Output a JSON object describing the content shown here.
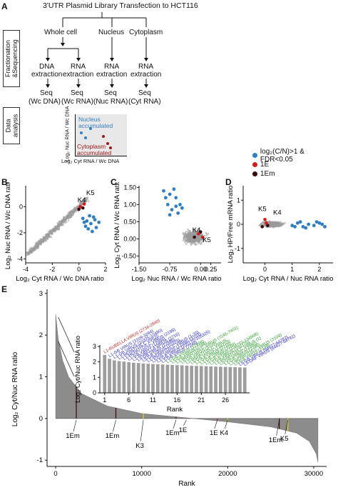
{
  "panel_a": {
    "letter": "A",
    "title": "3'UTR Plasmid Library Transfection to HCT116",
    "section1_label": "Fractionation &Sequencing",
    "section2_label": "Data analysis",
    "fractions": [
      "Whole cell",
      "Nucleus",
      "Cytoplasm"
    ],
    "columns": [
      {
        "extraction_1": "DNA",
        "extraction_2": "extraction",
        "seq": "Seq",
        "sample": "(Wc DNA)"
      },
      {
        "extraction_1": "RNA",
        "extraction_2": "extraction",
        "seq": "Seq",
        "sample": "(Wc RNA)"
      },
      {
        "extraction_1": "RNA",
        "extraction_2": "extraction",
        "seq": "Seq",
        "sample": "(Nuc RNA)"
      },
      {
        "extraction_1": "RNA",
        "extraction_2": "extraction",
        "seq": "Seq",
        "sample": "(Cyt RNA)"
      }
    ],
    "schematic": {
      "ylabel": "Log₂ Nuc RNA / Wc DNA",
      "xlabel": "Log₂ Cyt RNA / Wc DNA",
      "nucleus_label_1": "Nucleus",
      "nucleus_label_2": "accumulated",
      "cytoplasm_label_1": "Cytoplasm",
      "cytoplasm_label_2": "accumulated"
    }
  },
  "legend": {
    "items": [
      {
        "label": "log₂(C/N)>1 & FDR<0.05",
        "color": "#2f7fc6"
      },
      {
        "label": "1E",
        "color": "#d01c1c"
      },
      {
        "label": "1Em",
        "color": "#3a0a0a"
      }
    ]
  },
  "colors": {
    "gray": "#9a9a9a",
    "blue": "#2f7fc6",
    "red": "#d01c1c",
    "dark": "#3a0a0a",
    "yellow": "#e8d21a"
  },
  "chart_data": [
    {
      "panel": "B",
      "type": "scatter",
      "xlabel": "Log₂ Cyt RNA / Wc DNA ratio",
      "ylabel": "Log₂ Nuc RNA / Wc DNA ratio",
      "xlim": [
        -4,
        2
      ],
      "ylim": [
        -4.3,
        1.6
      ],
      "xticks": [
        -4,
        -2,
        0,
        2
      ],
      "yticks": [
        -4,
        -2,
        0
      ],
      "annotations": [
        {
          "text": "K5",
          "x": 0.55,
          "y": 0.9
        },
        {
          "text": "K4",
          "x": -0.1,
          "y": 0.35
        }
      ],
      "highlight_blue": [
        [
          0.3,
          -0.9
        ],
        [
          0.6,
          -1.1
        ],
        [
          0.9,
          -1.3
        ],
        [
          1.2,
          -1.0
        ],
        [
          0.5,
          -1.5
        ],
        [
          0.8,
          -0.7
        ],
        [
          1.3,
          -1.6
        ],
        [
          1.0,
          -1.9
        ],
        [
          0.4,
          -1.2
        ],
        [
          1.5,
          -1.2
        ],
        [
          0.7,
          -1.7
        ],
        [
          1.1,
          -0.8
        ]
      ],
      "highlight_red": [
        [
          0.1,
          0.0
        ],
        [
          0.4,
          0.2
        ]
      ],
      "highlight_dark": [
        [
          0.0,
          -0.2
        ],
        [
          0.3,
          -0.1
        ]
      ]
    },
    {
      "panel": "C",
      "type": "scatter",
      "xlabel": "Log₂ Nuc RNA / Wc RNA ratio",
      "ylabel": "Log₂ Cyt RNA / Wc RNA ratio",
      "xlim": [
        -1.5,
        0.5
      ],
      "ylim": [
        -0.7,
        1.55
      ],
      "xticks": [
        -1.5,
        -0.75,
        0,
        0.25
      ],
      "xticklabels": [
        "-1.50",
        "-0.75",
        "0.00",
        "0.25"
      ],
      "yticks": [
        -0.5,
        0,
        0.5,
        1.0,
        1.5
      ],
      "yticklabels": [
        "-0.50",
        "0.00",
        "0.50",
        "1.00",
        "1.50"
      ],
      "annotations": [
        {
          "text": "K4",
          "x": -0.2,
          "y": 0.2
        },
        {
          "text": "K5",
          "x": 0.05,
          "y": -0.1
        }
      ],
      "highlight_blue": [
        [
          -0.9,
          1.4
        ],
        [
          -0.75,
          1.3
        ],
        [
          -0.6,
          1.2
        ],
        [
          -0.8,
          1.0
        ],
        [
          -0.5,
          1.0
        ],
        [
          -0.7,
          0.85
        ],
        [
          -0.55,
          0.75
        ],
        [
          -0.85,
          1.2
        ],
        [
          -0.65,
          1.45
        ],
        [
          -0.45,
          0.9
        ],
        [
          -0.75,
          0.7
        ],
        [
          -0.6,
          0.95
        ]
      ],
      "highlight_red": [
        [
          -0.05,
          0.15
        ],
        [
          0.05,
          0.05
        ]
      ],
      "highlight_dark": [
        [
          -0.15,
          0.05
        ],
        [
          0.0,
          0.2
        ]
      ]
    },
    {
      "panel": "D",
      "type": "scatter",
      "xlabel": "Log₂ Cyt RNA / Nuc RNA ratio",
      "ylabel": "Log₂ HP/Free mRNA ratio",
      "xlim": [
        -0.8,
        2.5
      ],
      "ylim": [
        -1.6,
        1.6
      ],
      "xticks": [
        0,
        1,
        2
      ],
      "yticks": [
        -1,
        0,
        1
      ],
      "annotations": [
        {
          "text": "K5",
          "x": -0.25,
          "y": 0.55
        },
        {
          "text": "K4",
          "x": 0.3,
          "y": 0.4
        }
      ],
      "highlight_blue": [
        [
          1.0,
          -0.05
        ],
        [
          1.2,
          0.05
        ],
        [
          1.4,
          -0.1
        ],
        [
          1.6,
          0.0
        ],
        [
          1.8,
          -0.05
        ],
        [
          2.0,
          0.05
        ],
        [
          2.2,
          -0.1
        ],
        [
          1.3,
          0.1
        ],
        [
          1.5,
          -0.15
        ],
        [
          1.9,
          0.1
        ],
        [
          2.1,
          0.0
        ],
        [
          1.1,
          -0.1
        ]
      ],
      "highlight_red": [
        [
          0.0,
          0.2
        ],
        [
          0.05,
          0.05
        ]
      ],
      "highlight_dark": [
        [
          -0.1,
          -0.1
        ],
        [
          0.1,
          -0.05
        ]
      ]
    },
    {
      "panel": "E",
      "type": "area",
      "xlabel": "Rank",
      "ylabel": "Log₂ Cyt/Nuc RNA ratio",
      "xlim": [
        -1000,
        31500
      ],
      "ylim": [
        -1.15,
        3.1
      ],
      "xticks": [
        0,
        10000,
        20000,
        30000
      ],
      "yticks": [
        -1,
        0,
        1,
        2,
        3
      ],
      "curve": [
        [
          0,
          2.5
        ],
        [
          300,
          1.9
        ],
        [
          800,
          1.4
        ],
        [
          1500,
          1.0
        ],
        [
          3000,
          0.6
        ],
        [
          6000,
          0.3
        ],
        [
          10000,
          0.12
        ],
        [
          15000,
          0.02
        ],
        [
          20000,
          -0.08
        ],
        [
          25000,
          -0.2
        ],
        [
          28000,
          -0.35
        ],
        [
          29500,
          -0.55
        ],
        [
          30300,
          -0.85
        ],
        [
          30500,
          -1.05
        ]
      ],
      "markers": [
        {
          "text": "1Em",
          "x": 2400,
          "color": "#3a0a0a"
        },
        {
          "text": "1Em",
          "x": 7000,
          "color": "#3a0a0a"
        },
        {
          "text": "K3",
          "x": 10200,
          "color": "#e8d21a"
        },
        {
          "text": "1Em",
          "x": 14000,
          "color": "#3a0a0a"
        },
        {
          "text": "1E",
          "x": 15200,
          "color": "#d01c1c"
        },
        {
          "text": "1E",
          "x": 18800,
          "color": "#d01c1c"
        },
        {
          "text": "K4",
          "x": 20000,
          "color": "#e8d21a"
        },
        {
          "text": "1Em",
          "x": 26000,
          "color": "#3a0a0a"
        },
        {
          "text": "K5",
          "x": 27000,
          "color": "#e8d21a"
        }
      ]
    },
    {
      "panel": "E-inset",
      "type": "bar",
      "xlabel": "Rank",
      "ylabel": "Log₂ Cyt/Nuc RNA ratio",
      "xlim": [
        0,
        31
      ],
      "ylim": [
        0,
        3
      ],
      "xticks": [
        1,
        6,
        11,
        16,
        21,
        26
      ],
      "yticks": [
        0,
        1,
        2,
        3
      ],
      "values": [
        2.45,
        2.2,
        2.1,
        2.05,
        2.02,
        1.98,
        1.95,
        1.93,
        1.9,
        1.88,
        1.86,
        1.85,
        1.83,
        1.82,
        1.8,
        1.79,
        1.78,
        1.76,
        1.75,
        1.74,
        1.73,
        1.72,
        1.71,
        1.7,
        1.69,
        1.68,
        1.67,
        1.66,
        1.65,
        1.64
      ],
      "labels": [
        {
          "text": "L1-RUBELLA VIRUS (2716-2840)",
          "color": "#d01c1c"
        },
        {
          "text": "L1-GB VIRUS (3109-3264)",
          "color": "#2b2bd6"
        },
        {
          "text": "L1-GB VIRUS (10325-10480)",
          "color": "#2b2bd6"
        },
        {
          "text": "L1-HEPATITIS C VIRUS",
          "color": "#2b2bd6"
        },
        {
          "text": "L1-HEPATITIS C VIRUS (2198)",
          "color": "#2b2bd6"
        },
        {
          "text": "L1-GB VIRUS (12996)",
          "color": "#2b2bd6"
        },
        {
          "text": "L1-RUBELLA VIRUS (2716)",
          "color": "#2b2bd6"
        },
        {
          "text": "L4-GB VIRUS (12996)",
          "color": "#2b2bd6"
        },
        {
          "text": "L5-GB VIRUS (10325)",
          "color": "#2b2bd6"
        },
        {
          "text": "L1-HEPATITIS C VIRUS (1-70)",
          "color": "#2b2bd6"
        },
        {
          "text": "L5-GB VIRUS (12996-13151)",
          "color": "#2b2bd6"
        },
        {
          "text": "L1-GB VIRUS (105170-105325)",
          "color": "#2b2bd6"
        },
        {
          "text": "L1-GB VIRUS (7246)",
          "color": "#2b2bd6"
        },
        {
          "text": "L1-GB VIRUS (12996)",
          "color": "#2aa02a"
        },
        {
          "text": "L5-GB VIRUS (7246)",
          "color": "#2aa02a"
        },
        {
          "text": "L1-HEPATITIS C VIRUS (7246-7401)",
          "color": "#2aa02a"
        },
        {
          "text": "L5-GB VIRUS (3109)",
          "color": "#2aa02a"
        },
        {
          "text": "L1-HEPATITIS C VIRUS",
          "color": "#2aa02a"
        },
        {
          "text": "L5-GB VIRUS (134753)",
          "color": "#2aa02a"
        },
        {
          "text": "L1-GB VIRUS (2716)",
          "color": "#2aa02a"
        },
        {
          "text": "L1-GB VIRUS (3109)",
          "color": "#2aa02a"
        },
        {
          "text": "L5-GB VIRUS (134753-134908)",
          "color": "#2aa02a"
        },
        {
          "text": "L1-GB VIRUS (105170)",
          "color": "#2aa02a"
        },
        {
          "text": "L1-HEPATITIS C VIRUS (1)",
          "color": "#2aa02a"
        },
        {
          "text": "L5-GB VIRUS (12996)",
          "color": "#2aa02a"
        },
        {
          "text": "L1-GB VIRUS (7246)",
          "color": "#2aa02a"
        },
        {
          "text": "L1-HEPATITIS C VIRUS (3109)",
          "color": "#2aa02a"
        },
        {
          "text": "L5-GB VIRUS (2198)",
          "color": "#2aa02a"
        },
        {
          "text": "L5-GB VIRUS (64627-64782)",
          "color": "#2b2bd6"
        },
        {
          "text": "L5-ORF VIRUS (64627-64782)",
          "color": "#2b2bd6"
        }
      ]
    }
  ]
}
